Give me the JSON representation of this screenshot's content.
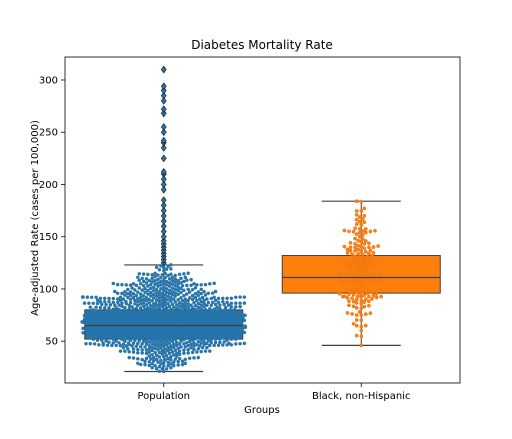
{
  "chart_data": {
    "type": "box",
    "title": "Diabetes Mortality Rate",
    "xlabel": "Groups",
    "ylabel": "Age-adjusted Rate (cases per 100,000)",
    "categories": [
      "Population",
      "Black, non-Hispanic"
    ],
    "ylim": [
      10,
      322
    ],
    "yticks": [
      50,
      100,
      150,
      200,
      250,
      300
    ],
    "grid": false,
    "overlay": "swarm",
    "colors": {
      "Population": "#1f77b4",
      "Black, non-Hispanic": "#ff7f0e"
    },
    "series": [
      {
        "category": "Population",
        "whisker_low": 21,
        "q1": 52,
        "median": 65,
        "q3": 80,
        "whisker_high": 123,
        "outliers": [
          125,
          128,
          131,
          134,
          137,
          140,
          143,
          146,
          150,
          155,
          160,
          165,
          170,
          175,
          180,
          185,
          195,
          200,
          205,
          210,
          212,
          225,
          235,
          240,
          242,
          250,
          255,
          268,
          272,
          280,
          285,
          290,
          294,
          310
        ]
      },
      {
        "category": "Black, non-Hispanic",
        "whisker_low": 46,
        "q1": 96,
        "median": 111,
        "q3": 132,
        "whisker_high": 184,
        "outliers": []
      }
    ]
  }
}
